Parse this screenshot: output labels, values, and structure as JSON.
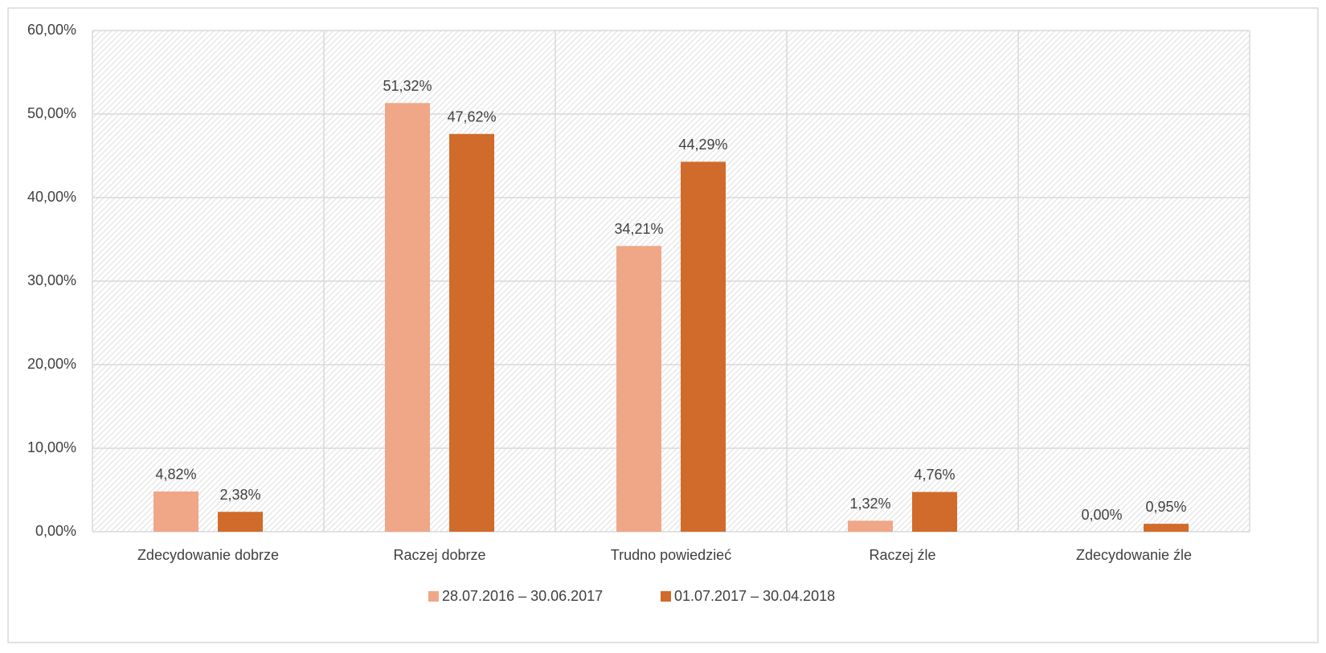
{
  "chart_data": {
    "type": "bar",
    "categories": [
      "Zdecydowanie dobrze",
      "Raczej dobrze",
      "Trudno powiedzieć",
      "Raczej źle",
      "Zdecydowanie źle"
    ],
    "series": [
      {
        "name": "28.07.2016 – 30.06.2017",
        "color": "#f0a787",
        "values": [
          4.82,
          51.32,
          34.21,
          1.32,
          0
        ],
        "value_labels": [
          "4,82%",
          "51,32%",
          "34,21%",
          "1,32%",
          "0,00%"
        ]
      },
      {
        "name": "01.07.2017 – 30.04.2018",
        "color": "#d06b2b",
        "values": [
          2.38,
          47.62,
          44.29,
          4.76,
          0.95
        ],
        "value_labels": [
          "2,38%",
          "47,62%",
          "44,29%",
          "4,76%",
          "0,95%"
        ]
      }
    ],
    "ylim": [
      0,
      60
    ],
    "yticks": [
      {
        "value": 0,
        "label": "0,00%"
      },
      {
        "value": 10,
        "label": "10,00%"
      },
      {
        "value": 20,
        "label": "20,00%"
      },
      {
        "value": 30,
        "label": "30,00%"
      },
      {
        "value": 40,
        "label": "40,00%"
      },
      {
        "value": 50,
        "label": "50,00%"
      },
      {
        "value": 60,
        "label": "60,00%"
      }
    ],
    "grid": true,
    "legend": "bottom"
  }
}
